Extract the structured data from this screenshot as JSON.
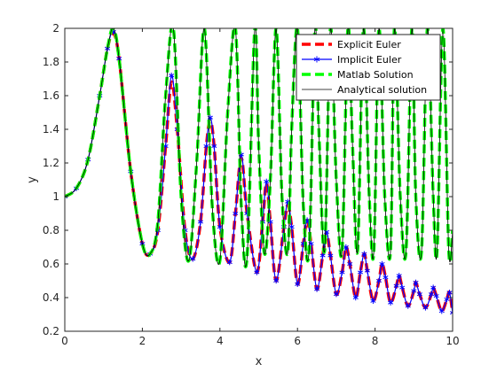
{
  "chart_data": {
    "type": "line",
    "title": "",
    "xlabel": "x",
    "ylabel": "y",
    "xlim": [
      0,
      10
    ],
    "ylim": [
      0.2,
      2
    ],
    "xticks": [
      "0",
      "2",
      "4",
      "6",
      "8",
      "10"
    ],
    "yticks": [
      "0.2",
      "0.4",
      "0.6",
      "0.8",
      "1",
      "1.2",
      "1.4",
      "1.6",
      "1.8",
      "2"
    ],
    "grid": false,
    "legend_position": "top-right",
    "series": [
      {
        "name": "Explicit Euler",
        "color": "#ff0000",
        "style": "dashed-thick",
        "x": [
          0,
          0.3,
          0.6,
          0.9,
          1.1,
          1.25,
          1.4,
          1.7,
          2.0,
          2.2,
          2.4,
          2.6,
          2.75,
          2.9,
          3.1,
          3.3,
          3.5,
          3.65,
          3.75,
          3.85,
          4.0,
          4.25,
          4.4,
          4.55,
          4.7,
          4.95,
          5.1,
          5.2,
          5.3,
          5.45,
          5.65,
          5.75,
          5.85,
          6.0,
          6.15,
          6.25,
          6.35,
          6.5,
          6.65,
          6.75,
          6.85,
          7.0,
          7.15,
          7.25,
          7.35,
          7.5,
          7.62,
          7.72,
          7.8,
          7.95,
          8.1,
          8.18,
          8.27,
          8.4,
          8.55,
          8.62,
          8.7,
          8.85,
          9.0,
          9.05,
          9.15,
          9.3,
          9.45,
          9.5,
          9.58,
          9.72,
          9.85,
          9.92,
          10.0
        ],
        "values": [
          1.0,
          1.05,
          1.22,
          1.6,
          1.88,
          1.97,
          1.82,
          1.15,
          0.72,
          0.66,
          0.8,
          1.3,
          1.68,
          1.4,
          0.8,
          0.63,
          0.85,
          1.3,
          1.45,
          1.3,
          0.82,
          0.61,
          0.9,
          1.23,
          0.9,
          0.55,
          0.85,
          1.08,
          0.85,
          0.5,
          0.82,
          0.95,
          0.82,
          0.48,
          0.72,
          0.86,
          0.72,
          0.45,
          0.65,
          0.78,
          0.65,
          0.42,
          0.55,
          0.7,
          0.6,
          0.4,
          0.55,
          0.66,
          0.56,
          0.38,
          0.5,
          0.6,
          0.52,
          0.37,
          0.47,
          0.53,
          0.46,
          0.35,
          0.44,
          0.49,
          0.42,
          0.34,
          0.42,
          0.46,
          0.41,
          0.32,
          0.39,
          0.43,
          0.31
        ]
      },
      {
        "name": "Implicit Euler",
        "color": "#0000ff",
        "style": "solid-star",
        "x": [
          0,
          0.3,
          0.6,
          0.9,
          1.1,
          1.25,
          1.4,
          1.7,
          2.0,
          2.2,
          2.4,
          2.6,
          2.75,
          2.9,
          3.1,
          3.3,
          3.5,
          3.65,
          3.75,
          3.85,
          4.0,
          4.25,
          4.4,
          4.55,
          4.7,
          4.95,
          5.1,
          5.2,
          5.3,
          5.45,
          5.65,
          5.75,
          5.85,
          6.0,
          6.15,
          6.25,
          6.35,
          6.5,
          6.65,
          6.75,
          6.85,
          7.0,
          7.15,
          7.25,
          7.35,
          7.5,
          7.62,
          7.72,
          7.8,
          7.95,
          8.1,
          8.18,
          8.27,
          8.4,
          8.55,
          8.62,
          8.7,
          8.85,
          9.0,
          9.05,
          9.15,
          9.3,
          9.45,
          9.5,
          9.58,
          9.72,
          9.85,
          9.92,
          10.0
        ],
        "values": [
          1.0,
          1.05,
          1.22,
          1.6,
          1.88,
          1.98,
          1.82,
          1.15,
          0.72,
          0.66,
          0.8,
          1.3,
          1.72,
          1.4,
          0.8,
          0.63,
          0.85,
          1.3,
          1.47,
          1.3,
          0.82,
          0.61,
          0.9,
          1.25,
          0.9,
          0.55,
          0.85,
          1.09,
          0.85,
          0.5,
          0.82,
          0.97,
          0.82,
          0.48,
          0.72,
          0.86,
          0.72,
          0.45,
          0.65,
          0.79,
          0.65,
          0.42,
          0.55,
          0.7,
          0.6,
          0.4,
          0.55,
          0.66,
          0.56,
          0.38,
          0.5,
          0.6,
          0.52,
          0.37,
          0.47,
          0.53,
          0.46,
          0.35,
          0.44,
          0.49,
          0.42,
          0.34,
          0.42,
          0.46,
          0.41,
          0.32,
          0.39,
          0.43,
          0.31
        ]
      },
      {
        "name": "Matlab Solution",
        "color": "#00ff00",
        "style": "dashed-thick",
        "x": [
          0,
          0.3,
          0.6,
          0.9,
          1.1,
          1.25,
          1.4,
          1.7,
          2.0,
          2.2,
          2.4,
          2.6,
          2.8,
          3.0,
          3.2,
          3.4,
          3.6,
          3.8,
          4.0,
          4.2,
          4.4,
          4.55,
          4.7,
          4.9,
          5.0,
          5.15,
          5.3,
          5.45,
          5.6,
          5.75,
          5.85,
          6.0,
          6.15,
          6.3,
          6.45,
          6.55,
          6.7,
          6.85,
          7.0,
          7.15,
          7.3,
          7.42,
          7.55,
          7.7,
          7.85,
          7.97,
          8.1,
          8.25,
          8.4,
          8.5,
          8.65,
          8.8,
          8.95,
          9.05,
          9.2,
          9.35,
          9.5,
          9.6,
          9.75,
          9.9,
          10.0
        ],
        "values": [
          1.0,
          1.05,
          1.22,
          1.6,
          1.88,
          2.0,
          1.82,
          1.15,
          0.72,
          0.66,
          0.85,
          1.6,
          2.0,
          1.0,
          0.62,
          1.2,
          2.0,
          0.95,
          0.62,
          1.5,
          2.0,
          0.95,
          0.64,
          2.0,
          1.3,
          0.66,
          1.1,
          2.0,
          1.0,
          0.67,
          1.4,
          2.0,
          0.95,
          0.68,
          2.0,
          1.4,
          0.68,
          2.0,
          1.1,
          0.68,
          2.0,
          1.3,
          0.68,
          2.0,
          1.0,
          0.68,
          2.0,
          1.0,
          0.68,
          2.0,
          1.0,
          0.68,
          2.0,
          1.0,
          0.68,
          2.0,
          1.0,
          0.68,
          2.0,
          0.68,
          0.8
        ]
      },
      {
        "name": "Analytical solution",
        "color": "#000000",
        "style": "solid-thin",
        "x": [
          0,
          0.3,
          0.6,
          0.9,
          1.1,
          1.25,
          1.4,
          1.7,
          2.0,
          2.2,
          2.4,
          2.6,
          2.8,
          3.0,
          3.2,
          3.4,
          3.6,
          3.8,
          4.0,
          4.2,
          4.4,
          4.55,
          4.7,
          4.9,
          5.0,
          5.15,
          5.3,
          5.45,
          5.6,
          5.75,
          5.85,
          6.0,
          6.15,
          6.3,
          6.45,
          6.55,
          6.7,
          6.85,
          7.0,
          7.15,
          7.3,
          7.42,
          7.55,
          7.7,
          7.85,
          7.97,
          8.1,
          8.25,
          8.4,
          8.5,
          8.65,
          8.8,
          8.95,
          9.05,
          9.2,
          9.35,
          9.5,
          9.6,
          9.75,
          9.9,
          10.0
        ],
        "values": [
          1.0,
          1.05,
          1.22,
          1.6,
          1.88,
          2.0,
          1.82,
          1.15,
          0.72,
          0.66,
          0.85,
          1.6,
          2.0,
          1.0,
          0.62,
          1.2,
          2.0,
          0.95,
          0.62,
          1.5,
          2.0,
          0.95,
          0.64,
          2.0,
          1.3,
          0.66,
          1.1,
          2.0,
          1.0,
          0.67,
          1.4,
          2.0,
          0.95,
          0.68,
          2.0,
          1.4,
          0.68,
          2.0,
          1.1,
          0.68,
          2.0,
          1.3,
          0.68,
          2.0,
          1.0,
          0.68,
          2.0,
          1.0,
          0.68,
          2.0,
          1.0,
          0.68,
          2.0,
          1.0,
          0.68,
          2.0,
          1.0,
          0.68,
          2.0,
          0.68,
          0.8
        ]
      }
    ]
  }
}
